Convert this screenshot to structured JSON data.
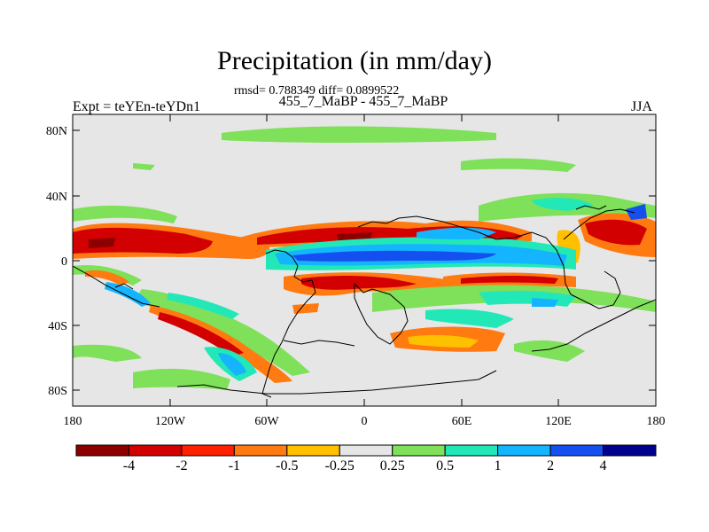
{
  "title": "Precipitation (in mm/day)",
  "stats": "rmsd= 0.788349 diff= 0.0899522",
  "subtitle": "455_7_MaBP - 455_7_MaBP",
  "expt": "Expt = teYEn-teYDn1",
  "season": "JJA",
  "map": {
    "y_ticks": [
      "80N",
      "40N",
      "0",
      "40S",
      "80S"
    ],
    "x_ticks": [
      "180",
      "120W",
      "60W",
      "0",
      "60E",
      "120E",
      "180"
    ],
    "background_color": "#e6e6e6"
  },
  "colorbar": {
    "colors": [
      "#8c0000",
      "#d20000",
      "#ff2000",
      "#ff7a10",
      "#ffc000",
      "#e6e6e6",
      "#7fe05a",
      "#22e8b8",
      "#14b4ff",
      "#1450f0",
      "#00008c"
    ],
    "labels": [
      "-4",
      "-2",
      "-1",
      "-0.5",
      "-0.25",
      "0.25",
      "0.5",
      "1",
      "2",
      "4"
    ]
  }
}
